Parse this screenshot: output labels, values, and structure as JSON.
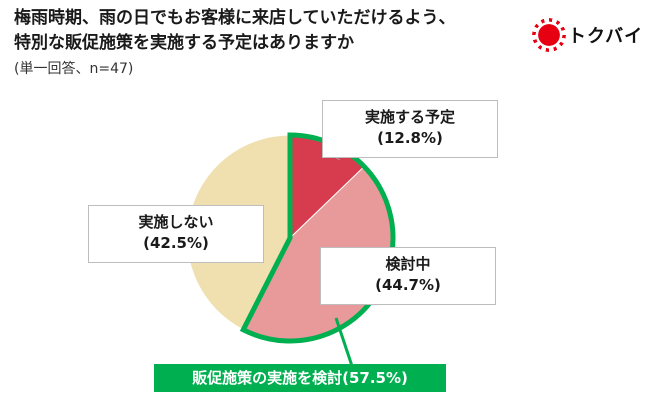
{
  "title_line1": "梅雨時期、雨の日でもお客様に来店していただけるよう、",
  "title_line2": "特別な販促施策を実施する予定はありますか",
  "subtitle": "(単一回答、n=47)",
  "brand_name": "トクバイ",
  "brand_icon": "sun-burst-icon",
  "colors": {
    "slice_plan": "#d63c4e",
    "slice_considering": "#e8999a",
    "slice_no": "#f0dfaf",
    "highlight": "#00b050"
  },
  "chart_data": {
    "type": "pie",
    "title": "",
    "slices": [
      {
        "name": "実施する予定",
        "value": 12.8,
        "label_value": "(12.8%)"
      },
      {
        "name": "検討中",
        "value": 44.7,
        "label_value": "(44.7%)"
      },
      {
        "name": "実施しない",
        "value": 42.5,
        "label_value": "(42.5%)"
      }
    ],
    "callout": "販促施策の実施を検討(57.5%)"
  }
}
